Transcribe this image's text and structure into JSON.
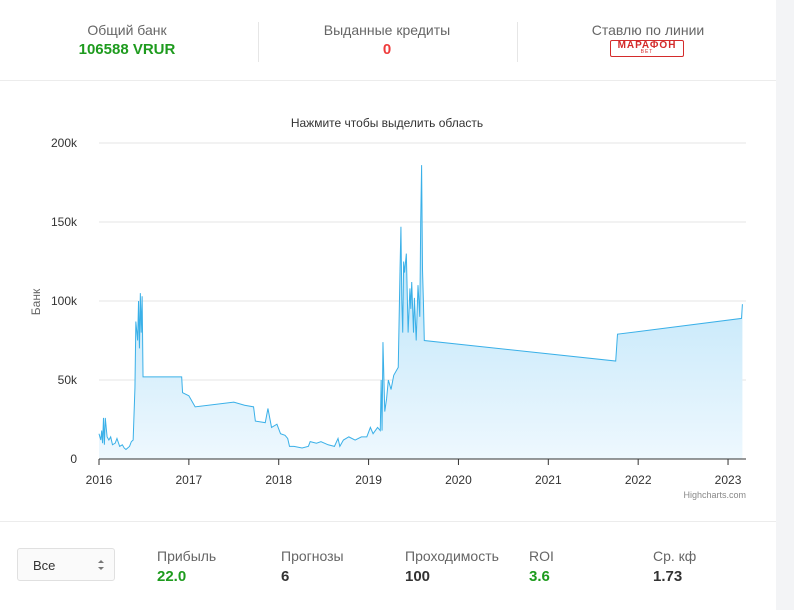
{
  "stats": {
    "bank": {
      "label": "Общий банк",
      "value": "106588 VRUR"
    },
    "credits": {
      "label": "Выданные кредиты",
      "value": "0"
    },
    "line": {
      "label": "Ставлю по линии",
      "logo_main": "МАРАФОН",
      "logo_sub": "BET"
    }
  },
  "chart_data": {
    "type": "area",
    "title": "Нажмите чтобы выделить область",
    "ylabel": "Банк",
    "xlabel": "",
    "ylim": [
      0,
      200000
    ],
    "xlim": [
      2016.0,
      2023.2
    ],
    "yticks": [
      "0",
      "50k",
      "100k",
      "150k",
      "200k"
    ],
    "xticks": [
      "2016",
      "2017",
      "2018",
      "2019",
      "2020",
      "2021",
      "2022",
      "2023"
    ],
    "credits": "Highcharts.com",
    "grid": true,
    "colors": {
      "line": "#3ab0e8",
      "fill_top": "#a7dcf7",
      "fill_bottom": "#eef8fe"
    },
    "series": [
      {
        "points": [
          [
            2016.0,
            16000
          ],
          [
            2016.02,
            12000
          ],
          [
            2016.03,
            18000
          ],
          [
            2016.04,
            10000
          ],
          [
            2016.05,
            26000
          ],
          [
            2016.06,
            9000
          ],
          [
            2016.07,
            26000
          ],
          [
            2016.09,
            14000
          ],
          [
            2016.11,
            12000
          ],
          [
            2016.13,
            14000
          ],
          [
            2016.15,
            9000
          ],
          [
            2016.18,
            10000
          ],
          [
            2016.2,
            13000
          ],
          [
            2016.23,
            8000
          ],
          [
            2016.26,
            9000
          ],
          [
            2016.28,
            7000
          ],
          [
            2016.3,
            6000
          ],
          [
            2016.34,
            8000
          ],
          [
            2016.36,
            11000
          ],
          [
            2016.38,
            12000
          ],
          [
            2016.4,
            45000
          ],
          [
            2016.41,
            87000
          ],
          [
            2016.43,
            75000
          ],
          [
            2016.44,
            100000
          ],
          [
            2016.45,
            70000
          ],
          [
            2016.46,
            105000
          ],
          [
            2016.47,
            80000
          ],
          [
            2016.48,
            103000
          ],
          [
            2016.49,
            52000
          ],
          [
            2016.92,
            52000
          ],
          [
            2016.93,
            42000
          ],
          [
            2017.0,
            40000
          ],
          [
            2017.07,
            33000
          ],
          [
            2017.5,
            36000
          ],
          [
            2017.62,
            34000
          ],
          [
            2017.72,
            33000
          ],
          [
            2017.74,
            24000
          ],
          [
            2017.85,
            23000
          ],
          [
            2017.88,
            32000
          ],
          [
            2017.92,
            20000
          ],
          [
            2017.98,
            22000
          ],
          [
            2018.02,
            16000
          ],
          [
            2018.07,
            15000
          ],
          [
            2018.1,
            13000
          ],
          [
            2018.12,
            8000
          ],
          [
            2018.17,
            8000
          ],
          [
            2018.26,
            7000
          ],
          [
            2018.33,
            8000
          ],
          [
            2018.35,
            11000
          ],
          [
            2018.42,
            10000
          ],
          [
            2018.47,
            11000
          ],
          [
            2018.55,
            9000
          ],
          [
            2018.62,
            8000
          ],
          [
            2018.66,
            13000
          ],
          [
            2018.68,
            8000
          ],
          [
            2018.72,
            12000
          ],
          [
            2018.78,
            14000
          ],
          [
            2018.85,
            12000
          ],
          [
            2018.92,
            14000
          ],
          [
            2018.98,
            14000
          ],
          [
            2019.02,
            20000
          ],
          [
            2019.05,
            16000
          ],
          [
            2019.1,
            20000
          ],
          [
            2019.13,
            18000
          ],
          [
            2019.14,
            50000
          ],
          [
            2019.15,
            18000
          ],
          [
            2019.16,
            74000
          ],
          [
            2019.18,
            30000
          ],
          [
            2019.2,
            38000
          ],
          [
            2019.22,
            50000
          ],
          [
            2019.25,
            44000
          ],
          [
            2019.28,
            53000
          ],
          [
            2019.31,
            56000
          ],
          [
            2019.33,
            58000
          ],
          [
            2019.35,
            120000
          ],
          [
            2019.36,
            147000
          ],
          [
            2019.37,
            100000
          ],
          [
            2019.38,
            80000
          ],
          [
            2019.39,
            125000
          ],
          [
            2019.4,
            118000
          ],
          [
            2019.42,
            130000
          ],
          [
            2019.44,
            80000
          ],
          [
            2019.46,
            108000
          ],
          [
            2019.47,
            95000
          ],
          [
            2019.48,
            112000
          ],
          [
            2019.5,
            80000
          ],
          [
            2019.51,
            102000
          ],
          [
            2019.53,
            75000
          ],
          [
            2019.55,
            110000
          ],
          [
            2019.57,
            90000
          ],
          [
            2019.58,
            150000
          ],
          [
            2019.59,
            186000
          ],
          [
            2019.6,
            120000
          ],
          [
            2019.61,
            100000
          ],
          [
            2019.62,
            75000
          ],
          [
            2021.75,
            62000
          ],
          [
            2021.77,
            79000
          ],
          [
            2023.15,
            89000
          ],
          [
            2023.16,
            98000
          ]
        ]
      }
    ]
  },
  "filter": {
    "selected": "Все"
  },
  "bottom": [
    {
      "label": "Прибыль",
      "value": "22.0",
      "color": "#1e9b1e"
    },
    {
      "label": "Прогнозы",
      "value": "6",
      "color": "#333333"
    },
    {
      "label": "Проходимость",
      "value": "100",
      "color": "#333333"
    },
    {
      "label": "ROI",
      "value": "3.6",
      "color": "#1e9b1e"
    },
    {
      "label": "Ср. кф",
      "value": "1.73",
      "color": "#333333"
    }
  ]
}
